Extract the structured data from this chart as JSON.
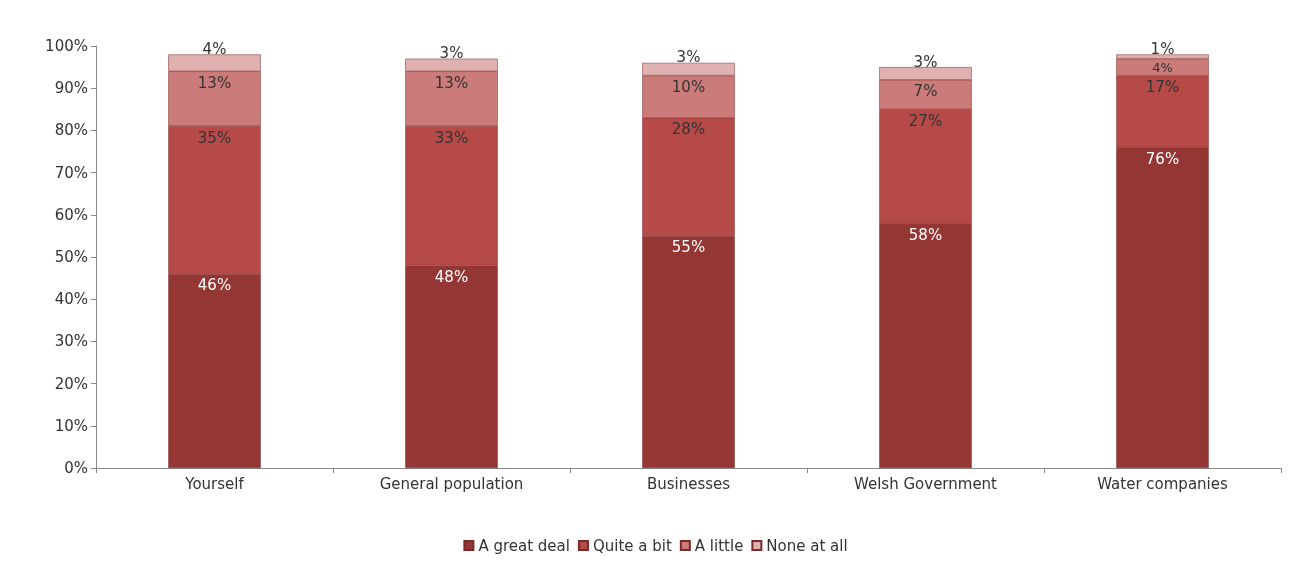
{
  "chart_data": {
    "type": "bar",
    "stacked": true,
    "categories": [
      "Yourself",
      "General population",
      "Businesses",
      "Welsh Government",
      "Water companies"
    ],
    "series": [
      {
        "name": "A great deal",
        "color": "#943634",
        "values": [
          46,
          48,
          55,
          58,
          76
        ],
        "value_labels": [
          "46%",
          "48%",
          "55%",
          "58%",
          "76%"
        ]
      },
      {
        "name": "Quite a bit",
        "color": "#b54a48",
        "values": [
          35,
          33,
          28,
          27,
          17
        ],
        "value_labels": [
          "35%",
          "33%",
          "28%",
          "27%",
          "17%"
        ]
      },
      {
        "name": "A little",
        "color": "#ca7b7a",
        "values": [
          13,
          13,
          10,
          7,
          4
        ],
        "value_labels": [
          "13%",
          "13%",
          "10%",
          "7%",
          "4%"
        ]
      },
      {
        "name": "None at all",
        "color": "#dfb1b0",
        "values": [
          4,
          3,
          3,
          3,
          1
        ],
        "value_labels": [
          "4%",
          "3%",
          "3%",
          "3%",
          "1%"
        ]
      }
    ],
    "ylim": [
      0,
      100
    ],
    "yticks": [
      {
        "value": 0,
        "label": "0%"
      },
      {
        "value": 10,
        "label": "10%"
      },
      {
        "value": 20,
        "label": "20%"
      },
      {
        "value": 30,
        "label": "30%"
      },
      {
        "value": 40,
        "label": "40%"
      },
      {
        "value": 50,
        "label": "50%"
      },
      {
        "value": 60,
        "label": "60%"
      },
      {
        "value": 70,
        "label": "70%"
      },
      {
        "value": 80,
        "label": "80%"
      },
      {
        "value": 90,
        "label": "90%"
      },
      {
        "value": 100,
        "label": "100%"
      }
    ],
    "legend": "bottom",
    "grid": false
  }
}
